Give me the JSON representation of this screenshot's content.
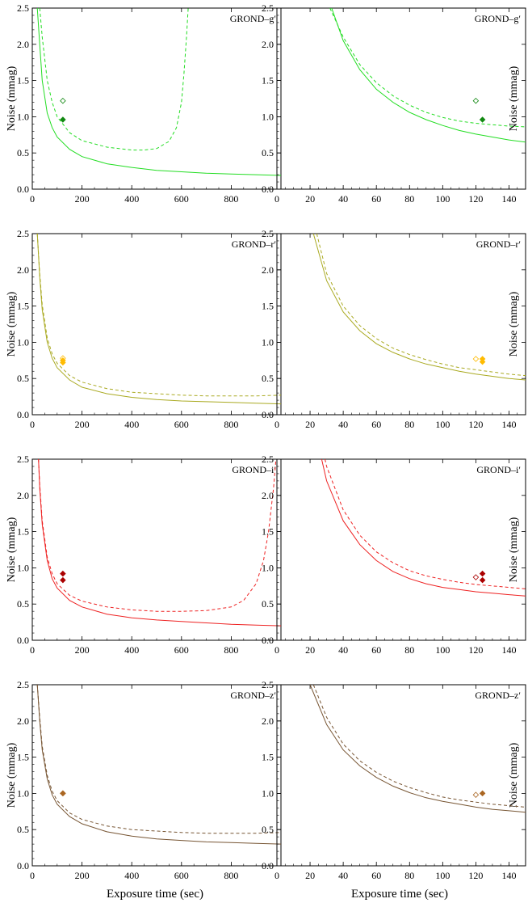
{
  "figure": {
    "ylabel": "Noise (mmag)",
    "xlabel": "Exposure time (sec)"
  },
  "chart_data": [
    {
      "type": "line",
      "title": "GROND–g′",
      "color": "#22dd22",
      "marker_color": "#118811",
      "xlim": [
        0,
        1000
      ],
      "ylim": [
        0,
        2.5
      ],
      "xticks": [
        "0",
        "200",
        "400",
        "600",
        "800"
      ],
      "yticks": [
        "0.0",
        "0.5",
        "1.0",
        "1.5",
        "2.0",
        "2.5"
      ],
      "series": [
        {
          "style": "solid",
          "x": [
            20,
            30,
            40,
            60,
            80,
            100,
            150,
            200,
            300,
            400,
            500,
            600,
            700,
            800,
            900,
            1000
          ],
          "y": [
            2.5,
            2.0,
            1.5,
            1.05,
            0.85,
            0.72,
            0.55,
            0.45,
            0.35,
            0.3,
            0.26,
            0.24,
            0.22,
            0.21,
            0.2,
            0.19
          ]
        },
        {
          "style": "dashed",
          "x": [
            30,
            40,
            60,
            80,
            100,
            150,
            200,
            300,
            400,
            450,
            500,
            550,
            580,
            600,
            610,
            620,
            627
          ],
          "y": [
            2.5,
            2.1,
            1.5,
            1.2,
            1.0,
            0.78,
            0.67,
            0.58,
            0.54,
            0.54,
            0.56,
            0.66,
            0.85,
            1.2,
            1.6,
            2.1,
            2.5
          ]
        }
      ],
      "points": [
        {
          "x": 123,
          "y": 1.22,
          "filled": false
        },
        {
          "x": 123,
          "y": 0.96,
          "filled": true
        }
      ]
    },
    {
      "type": "line",
      "title": "GROND–g′",
      "color": "#22dd22",
      "marker_color": "#118811",
      "xlim": [
        0,
        150
      ],
      "ylim": [
        0,
        2.5
      ],
      "xticks": [
        "0",
        "20",
        "40",
        "60",
        "80",
        "100",
        "120",
        "140"
      ],
      "yticks": [
        "0.0",
        "0.5",
        "1.0",
        "1.5",
        "2.0",
        "2.5"
      ],
      "series": [
        {
          "style": "solid",
          "x": [
            33,
            40,
            50,
            60,
            70,
            80,
            90,
            100,
            110,
            120,
            130,
            140,
            150
          ],
          "y": [
            2.5,
            2.05,
            1.65,
            1.38,
            1.2,
            1.06,
            0.96,
            0.88,
            0.81,
            0.76,
            0.72,
            0.68,
            0.65
          ]
        },
        {
          "style": "dashed",
          "x": [
            32,
            40,
            50,
            60,
            70,
            80,
            90,
            100,
            110,
            120,
            130,
            140,
            150
          ],
          "y": [
            2.5,
            2.1,
            1.72,
            1.47,
            1.29,
            1.16,
            1.06,
            0.99,
            0.94,
            0.91,
            0.89,
            0.87,
            0.86
          ]
        }
      ],
      "points": [
        {
          "x": 120,
          "y": 1.22,
          "filled": false
        },
        {
          "x": 124,
          "y": 0.96,
          "filled": true
        }
      ]
    },
    {
      "type": "line",
      "title": "GROND–r′",
      "color": "#aaaa22",
      "marker_color": "#ffbb00",
      "xlim": [
        0,
        1000
      ],
      "ylim": [
        0,
        2.5
      ],
      "xticks": [
        "0",
        "200",
        "400",
        "600",
        "800"
      ],
      "yticks": [
        "0.0",
        "0.5",
        "1.0",
        "1.5",
        "2.0",
        "2.5"
      ],
      "series": [
        {
          "style": "solid",
          "x": [
            20,
            30,
            40,
            60,
            80,
            100,
            150,
            200,
            300,
            400,
            500,
            600,
            700,
            800,
            900,
            1000
          ],
          "y": [
            2.5,
            1.9,
            1.45,
            1.0,
            0.78,
            0.65,
            0.48,
            0.38,
            0.29,
            0.24,
            0.21,
            0.19,
            0.18,
            0.17,
            0.16,
            0.15
          ]
        },
        {
          "style": "dashed",
          "x": [
            20,
            30,
            40,
            60,
            80,
            100,
            150,
            200,
            300,
            400,
            500,
            600,
            700,
            800,
            900,
            1000
          ],
          "y": [
            2.5,
            1.95,
            1.52,
            1.06,
            0.84,
            0.71,
            0.54,
            0.45,
            0.36,
            0.31,
            0.29,
            0.27,
            0.26,
            0.26,
            0.26,
            0.27
          ]
        }
      ],
      "points": [
        {
          "x": 123,
          "y": 0.78,
          "filled": false
        },
        {
          "x": 123,
          "y": 0.75,
          "filled": true
        },
        {
          "x": 123,
          "y": 0.72,
          "filled": true
        }
      ]
    },
    {
      "type": "line",
      "title": "GROND–r′",
      "color": "#aaaa22",
      "marker_color": "#ffbb00",
      "xlim": [
        0,
        150
      ],
      "ylim": [
        0,
        2.5
      ],
      "xticks": [
        "0",
        "20",
        "40",
        "60",
        "80",
        "100",
        "120",
        "140"
      ],
      "yticks": [
        "0.0",
        "0.5",
        "1.0",
        "1.5",
        "2.0",
        "2.5"
      ],
      "series": [
        {
          "style": "solid",
          "x": [
            22,
            30,
            40,
            50,
            60,
            70,
            80,
            90,
            100,
            110,
            120,
            130,
            140,
            150
          ],
          "y": [
            2.5,
            1.85,
            1.42,
            1.16,
            0.98,
            0.86,
            0.77,
            0.7,
            0.65,
            0.6,
            0.56,
            0.53,
            0.5,
            0.48
          ]
        },
        {
          "style": "dashed",
          "x": [
            24,
            30,
            40,
            50,
            60,
            70,
            80,
            90,
            100,
            110,
            120,
            130,
            140,
            150
          ],
          "y": [
            2.5,
            1.95,
            1.5,
            1.23,
            1.05,
            0.92,
            0.83,
            0.76,
            0.7,
            0.65,
            0.62,
            0.59,
            0.56,
            0.54
          ]
        }
      ],
      "points": [
        {
          "x": 120,
          "y": 0.77,
          "filled": false
        },
        {
          "x": 124,
          "y": 0.77,
          "filled": true
        },
        {
          "x": 124,
          "y": 0.73,
          "filled": true
        }
      ]
    },
    {
      "type": "line",
      "title": "GROND–i′",
      "color": "#ee2222",
      "marker_color": "#aa0000",
      "xlim": [
        0,
        1000
      ],
      "ylim": [
        0,
        2.5
      ],
      "xticks": [
        "0",
        "200",
        "400",
        "600",
        "800"
      ],
      "yticks": [
        "0.0",
        "0.5",
        "1.0",
        "1.5",
        "2.0",
        "2.5"
      ],
      "series": [
        {
          "style": "solid",
          "x": [
            25,
            30,
            40,
            60,
            80,
            100,
            150,
            200,
            300,
            400,
            500,
            600,
            700,
            800,
            900,
            1000
          ],
          "y": [
            2.5,
            2.1,
            1.6,
            1.1,
            0.85,
            0.72,
            0.55,
            0.46,
            0.36,
            0.31,
            0.28,
            0.26,
            0.24,
            0.22,
            0.21,
            0.2
          ]
        },
        {
          "style": "dashed",
          "x": [
            25,
            30,
            40,
            60,
            80,
            100,
            150,
            200,
            300,
            400,
            500,
            600,
            700,
            800,
            850,
            900,
            930,
            950,
            970,
            980
          ],
          "y": [
            2.5,
            2.15,
            1.65,
            1.15,
            0.92,
            0.78,
            0.62,
            0.54,
            0.46,
            0.42,
            0.4,
            0.4,
            0.41,
            0.46,
            0.55,
            0.78,
            1.1,
            1.5,
            2.1,
            2.5
          ]
        }
      ],
      "points": [
        {
          "x": 123,
          "y": 0.92,
          "filled": true
        },
        {
          "x": 123,
          "y": 0.83,
          "filled": true
        }
      ]
    },
    {
      "type": "line",
      "title": "GROND–i′",
      "color": "#ee2222",
      "marker_color": "#aa0000",
      "xlim": [
        0,
        150
      ],
      "ylim": [
        0,
        2.5
      ],
      "xticks": [
        "0",
        "20",
        "40",
        "60",
        "80",
        "100",
        "120",
        "140"
      ],
      "yticks": [
        "0.0",
        "0.5",
        "1.0",
        "1.5",
        "2.0",
        "2.5"
      ],
      "series": [
        {
          "style": "solid",
          "x": [
            27,
            30,
            40,
            50,
            60,
            70,
            80,
            90,
            100,
            110,
            120,
            130,
            140,
            150
          ],
          "y": [
            2.5,
            2.2,
            1.65,
            1.32,
            1.1,
            0.95,
            0.85,
            0.78,
            0.73,
            0.7,
            0.67,
            0.65,
            0.63,
            0.61
          ]
        },
        {
          "style": "dashed",
          "x": [
            29,
            30,
            40,
            50,
            60,
            70,
            80,
            90,
            100,
            110,
            120,
            130,
            140,
            150
          ],
          "y": [
            2.5,
            2.4,
            1.8,
            1.45,
            1.22,
            1.07,
            0.96,
            0.89,
            0.84,
            0.8,
            0.77,
            0.75,
            0.73,
            0.71
          ]
        }
      ],
      "points": [
        {
          "x": 120,
          "y": 0.87,
          "filled": false
        },
        {
          "x": 124,
          "y": 0.92,
          "filled": true
        },
        {
          "x": 124,
          "y": 0.83,
          "filled": true
        }
      ]
    },
    {
      "type": "line",
      "title": "GROND–z′",
      "color": "#775533",
      "marker_color": "#aa6622",
      "xlim": [
        0,
        1000
      ],
      "ylim": [
        0,
        2.5
      ],
      "xticks": [
        "0",
        "200",
        "400",
        "600",
        "800"
      ],
      "yticks": [
        "0.0",
        "0.5",
        "1.0",
        "1.5",
        "2.0",
        "2.5"
      ],
      "series": [
        {
          "style": "solid",
          "x": [
            20,
            30,
            40,
            60,
            80,
            100,
            150,
            200,
            300,
            400,
            500,
            600,
            700,
            800,
            900,
            1000
          ],
          "y": [
            2.5,
            2.0,
            1.6,
            1.2,
            0.98,
            0.85,
            0.68,
            0.58,
            0.47,
            0.41,
            0.37,
            0.35,
            0.33,
            0.32,
            0.31,
            0.3
          ]
        },
        {
          "style": "dashed",
          "x": [
            20,
            30,
            40,
            60,
            80,
            100,
            150,
            200,
            300,
            400,
            500,
            600,
            700,
            800,
            900,
            1000
          ],
          "y": [
            2.5,
            2.05,
            1.65,
            1.25,
            1.03,
            0.9,
            0.73,
            0.64,
            0.55,
            0.5,
            0.48,
            0.46,
            0.45,
            0.45,
            0.45,
            0.46
          ]
        }
      ],
      "points": [
        {
          "x": 123,
          "y": 1.0,
          "filled": false
        },
        {
          "x": 123,
          "y": 1.0,
          "filled": true
        }
      ]
    },
    {
      "type": "line",
      "title": "GROND–z′",
      "color": "#775533",
      "marker_color": "#aa6622",
      "xlim": [
        0,
        150
      ],
      "ylim": [
        0,
        2.5
      ],
      "xticks": [
        "0",
        "20",
        "40",
        "60",
        "80",
        "100",
        "120",
        "140"
      ],
      "yticks": [
        "0.0",
        "0.5",
        "1.0",
        "1.5",
        "2.0",
        "2.5"
      ],
      "series": [
        {
          "style": "solid",
          "x": [
            20,
            30,
            40,
            50,
            60,
            70,
            80,
            90,
            100,
            110,
            120,
            130,
            140,
            150
          ],
          "y": [
            2.5,
            1.95,
            1.6,
            1.38,
            1.22,
            1.1,
            1.01,
            0.94,
            0.89,
            0.85,
            0.81,
            0.78,
            0.76,
            0.74
          ]
        },
        {
          "style": "dashed",
          "x": [
            22,
            30,
            40,
            50,
            60,
            70,
            80,
            90,
            100,
            110,
            120,
            130,
            140,
            150
          ],
          "y": [
            2.5,
            2.05,
            1.68,
            1.45,
            1.29,
            1.17,
            1.08,
            1.01,
            0.95,
            0.91,
            0.88,
            0.85,
            0.83,
            0.81
          ]
        }
      ],
      "points": [
        {
          "x": 120,
          "y": 0.98,
          "filled": false
        },
        {
          "x": 124,
          "y": 1.0,
          "filled": true
        }
      ]
    }
  ]
}
